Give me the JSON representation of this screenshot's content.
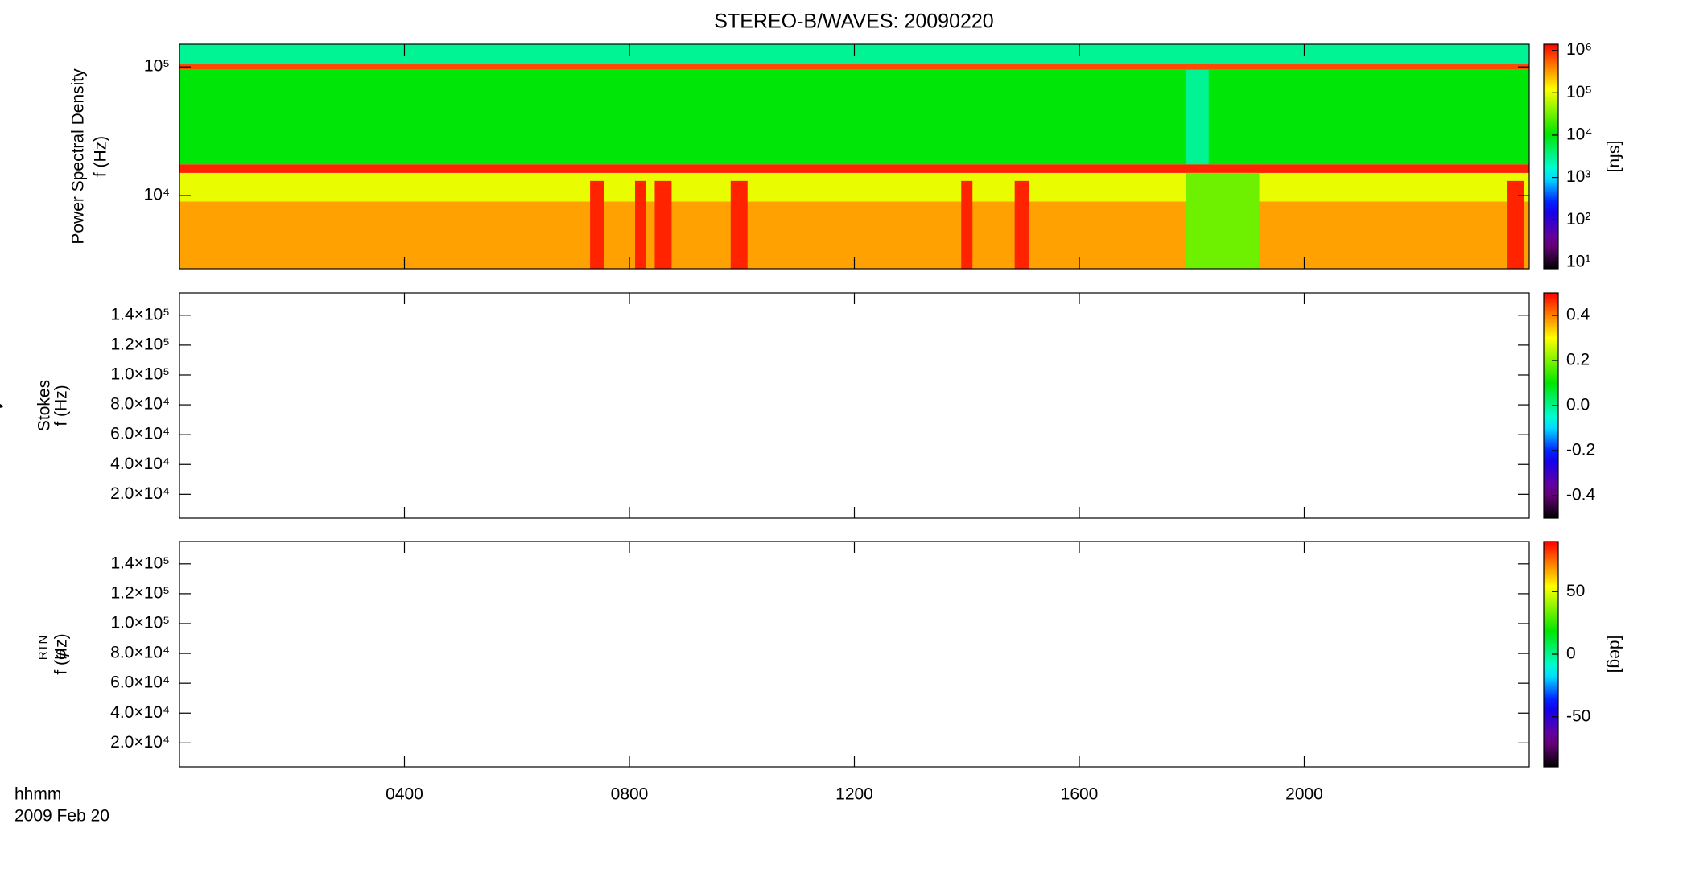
{
  "chart_data": [
    {
      "type": "heatmap",
      "title": "STEREO-B/WAVES: 20090220",
      "quantity": "Power Spectral Density",
      "ylabel": "f (Hz)",
      "xlim": [
        0,
        24
      ],
      "ylim": [
        2700,
        150000
      ],
      "ylog": true,
      "yticks": [
        {
          "value": 10000,
          "label": "10⁴"
        },
        {
          "value": 100000,
          "label": "10⁵"
        }
      ],
      "colorbar": {
        "lim": [
          7,
          1400000
        ],
        "log": true,
        "label": "[sfu]",
        "ticks": [
          {
            "value": 10,
            "label": "10¹"
          },
          {
            "value": 100,
            "label": "10²"
          },
          {
            "value": 1000,
            "label": "10³"
          },
          {
            "value": 10000,
            "label": "10⁴"
          },
          {
            "value": 100000,
            "label": "10⁵"
          },
          {
            "value": 1000000,
            "label": "10⁶"
          }
        ]
      },
      "bands": [
        {
          "f": [
            2700,
            9000
          ],
          "value": 300000
        },
        {
          "f": [
            9000,
            15000
          ],
          "value": 100000
        },
        {
          "f": [
            15000,
            17500
          ],
          "value": 1000000
        },
        {
          "f": [
            17500,
            95000
          ],
          "value": 10000
        },
        {
          "f": [
            95000,
            105000
          ],
          "value": 700000
        },
        {
          "f": [
            105000,
            150000
          ],
          "value": 3000
        }
      ],
      "regions": [
        {
          "t": [
            17.9,
            19.2
          ],
          "f": [
            2700,
            15000
          ],
          "value": 30000
        },
        {
          "t": [
            17.9,
            18.3
          ],
          "f": [
            17500,
            95000
          ],
          "value": 3000
        },
        {
          "t": [
            7.3,
            7.55
          ],
          "f": [
            2700,
            13000
          ],
          "value": 1000000
        },
        {
          "t": [
            8.1,
            8.3
          ],
          "f": [
            2700,
            13000
          ],
          "value": 1000000
        },
        {
          "t": [
            8.45,
            8.75
          ],
          "f": [
            2700,
            13000
          ],
          "value": 1000000
        },
        {
          "t": [
            9.8,
            10.1
          ],
          "f": [
            2700,
            13000
          ],
          "value": 1000000
        },
        {
          "t": [
            13.9,
            14.1
          ],
          "f": [
            2700,
            13000
          ],
          "value": 1000000
        },
        {
          "t": [
            14.85,
            15.1
          ],
          "f": [
            2700,
            13000
          ],
          "value": 1000000
        },
        {
          "t": [
            23.6,
            23.9
          ],
          "f": [
            2700,
            13000
          ],
          "value": 1000000
        }
      ]
    },
    {
      "type": "heatmap",
      "quantity": "Stokes",
      "quantity_symbol": "V",
      "ylabel": "f (Hz)",
      "xlim": [
        0,
        24
      ],
      "ylim": [
        4000,
        155000
      ],
      "yticks": [
        {
          "value": 20000,
          "label": "2.0×10⁴"
        },
        {
          "value": 40000,
          "label": "4.0×10⁴"
        },
        {
          "value": 60000,
          "label": "6.0×10⁴"
        },
        {
          "value": 80000,
          "label": "8.0×10⁴"
        },
        {
          "value": 100000,
          "label": "1.0×10⁵"
        },
        {
          "value": 120000,
          "label": "1.2×10⁵"
        },
        {
          "value": 140000,
          "label": "1.4×10⁵"
        }
      ],
      "colorbar": {
        "lim": [
          -0.5,
          0.5
        ],
        "log": false,
        "ticks": [
          -0.4,
          -0.2,
          {
            "value": 0,
            "label": "0.0"
          },
          0.2,
          0.4
        ]
      }
    },
    {
      "type": "heatmap",
      "quantity_symbol": "φ",
      "quantity_sub": "RTN",
      "ylabel": "f (Hz)",
      "xlim": [
        0,
        24
      ],
      "ylim": [
        4000,
        155000
      ],
      "yticks": [
        {
          "value": 20000,
          "label": "2.0×10⁴"
        },
        {
          "value": 40000,
          "label": "4.0×10⁴"
        },
        {
          "value": 60000,
          "label": "6.0×10⁴"
        },
        {
          "value": 80000,
          "label": "8.0×10⁴"
        },
        {
          "value": 100000,
          "label": "1.0×10⁵"
        },
        {
          "value": 120000,
          "label": "1.2×10⁵"
        },
        {
          "value": 140000,
          "label": "1.4×10⁵"
        }
      ],
      "xticks": [
        {
          "value": 4,
          "label": "0400"
        },
        {
          "value": 8,
          "label": "0800"
        },
        {
          "value": 12,
          "label": "1200"
        },
        {
          "value": 16,
          "label": "1600"
        },
        {
          "value": 20,
          "label": "2000"
        }
      ],
      "xlabel": "hhmm",
      "date": "2009 Feb 20",
      "colorbar": {
        "lim": [
          -90,
          90
        ],
        "log": false,
        "label": "[deg]",
        "ticks": [
          -50,
          0,
          50
        ]
      }
    }
  ]
}
